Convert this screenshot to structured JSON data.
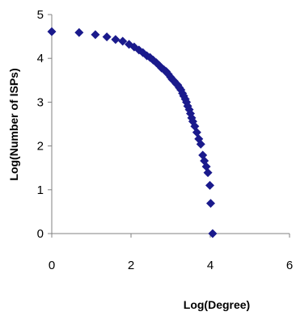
{
  "chart_data": {
    "type": "scatter",
    "title": "",
    "xlabel": "Log(Degree)",
    "ylabel": "Log(Number of ISPs)",
    "xlim": [
      0,
      6
    ],
    "ylim": [
      0,
      5
    ],
    "xticks": [
      "0",
      "2",
      "4",
      "6"
    ],
    "yticks": [
      "0",
      "1",
      "2",
      "3",
      "4",
      "5"
    ],
    "grid": false,
    "legend": "none",
    "marker": "diamond",
    "marker_color": "#1a1a8c",
    "series": [
      {
        "points": [
          [
            0.0,
            4.61
          ],
          [
            0.69,
            4.59
          ],
          [
            1.1,
            4.54
          ],
          [
            1.39,
            4.49
          ],
          [
            1.61,
            4.43
          ],
          [
            1.79,
            4.39
          ],
          [
            1.95,
            4.32
          ],
          [
            2.08,
            4.26
          ],
          [
            2.2,
            4.19
          ],
          [
            2.3,
            4.13
          ],
          [
            2.4,
            4.06
          ],
          [
            2.48,
            4.02
          ],
          [
            2.56,
            3.96
          ],
          [
            2.64,
            3.9
          ],
          [
            2.71,
            3.84
          ],
          [
            2.77,
            3.78
          ],
          [
            2.83,
            3.74
          ],
          [
            2.89,
            3.7
          ],
          [
            2.94,
            3.64
          ],
          [
            3.0,
            3.57
          ],
          [
            3.04,
            3.52
          ],
          [
            3.09,
            3.48
          ],
          [
            3.14,
            3.42
          ],
          [
            3.18,
            3.39
          ],
          [
            3.22,
            3.33
          ],
          [
            3.26,
            3.28
          ],
          [
            3.3,
            3.2
          ],
          [
            3.33,
            3.14
          ],
          [
            3.37,
            3.07
          ],
          [
            3.4,
            3.0
          ],
          [
            3.43,
            2.91
          ],
          [
            3.47,
            2.83
          ],
          [
            3.5,
            2.74
          ],
          [
            3.53,
            2.64
          ],
          [
            3.56,
            2.56
          ],
          [
            3.61,
            2.45
          ],
          [
            3.66,
            2.31
          ],
          [
            3.71,
            2.16
          ],
          [
            3.76,
            2.04
          ],
          [
            3.81,
            1.79
          ],
          [
            3.85,
            1.66
          ],
          [
            3.9,
            1.53
          ],
          [
            3.94,
            1.39
          ],
          [
            3.99,
            1.1
          ],
          [
            4.01,
            0.69
          ],
          [
            4.06,
            0.0
          ]
        ]
      }
    ]
  }
}
